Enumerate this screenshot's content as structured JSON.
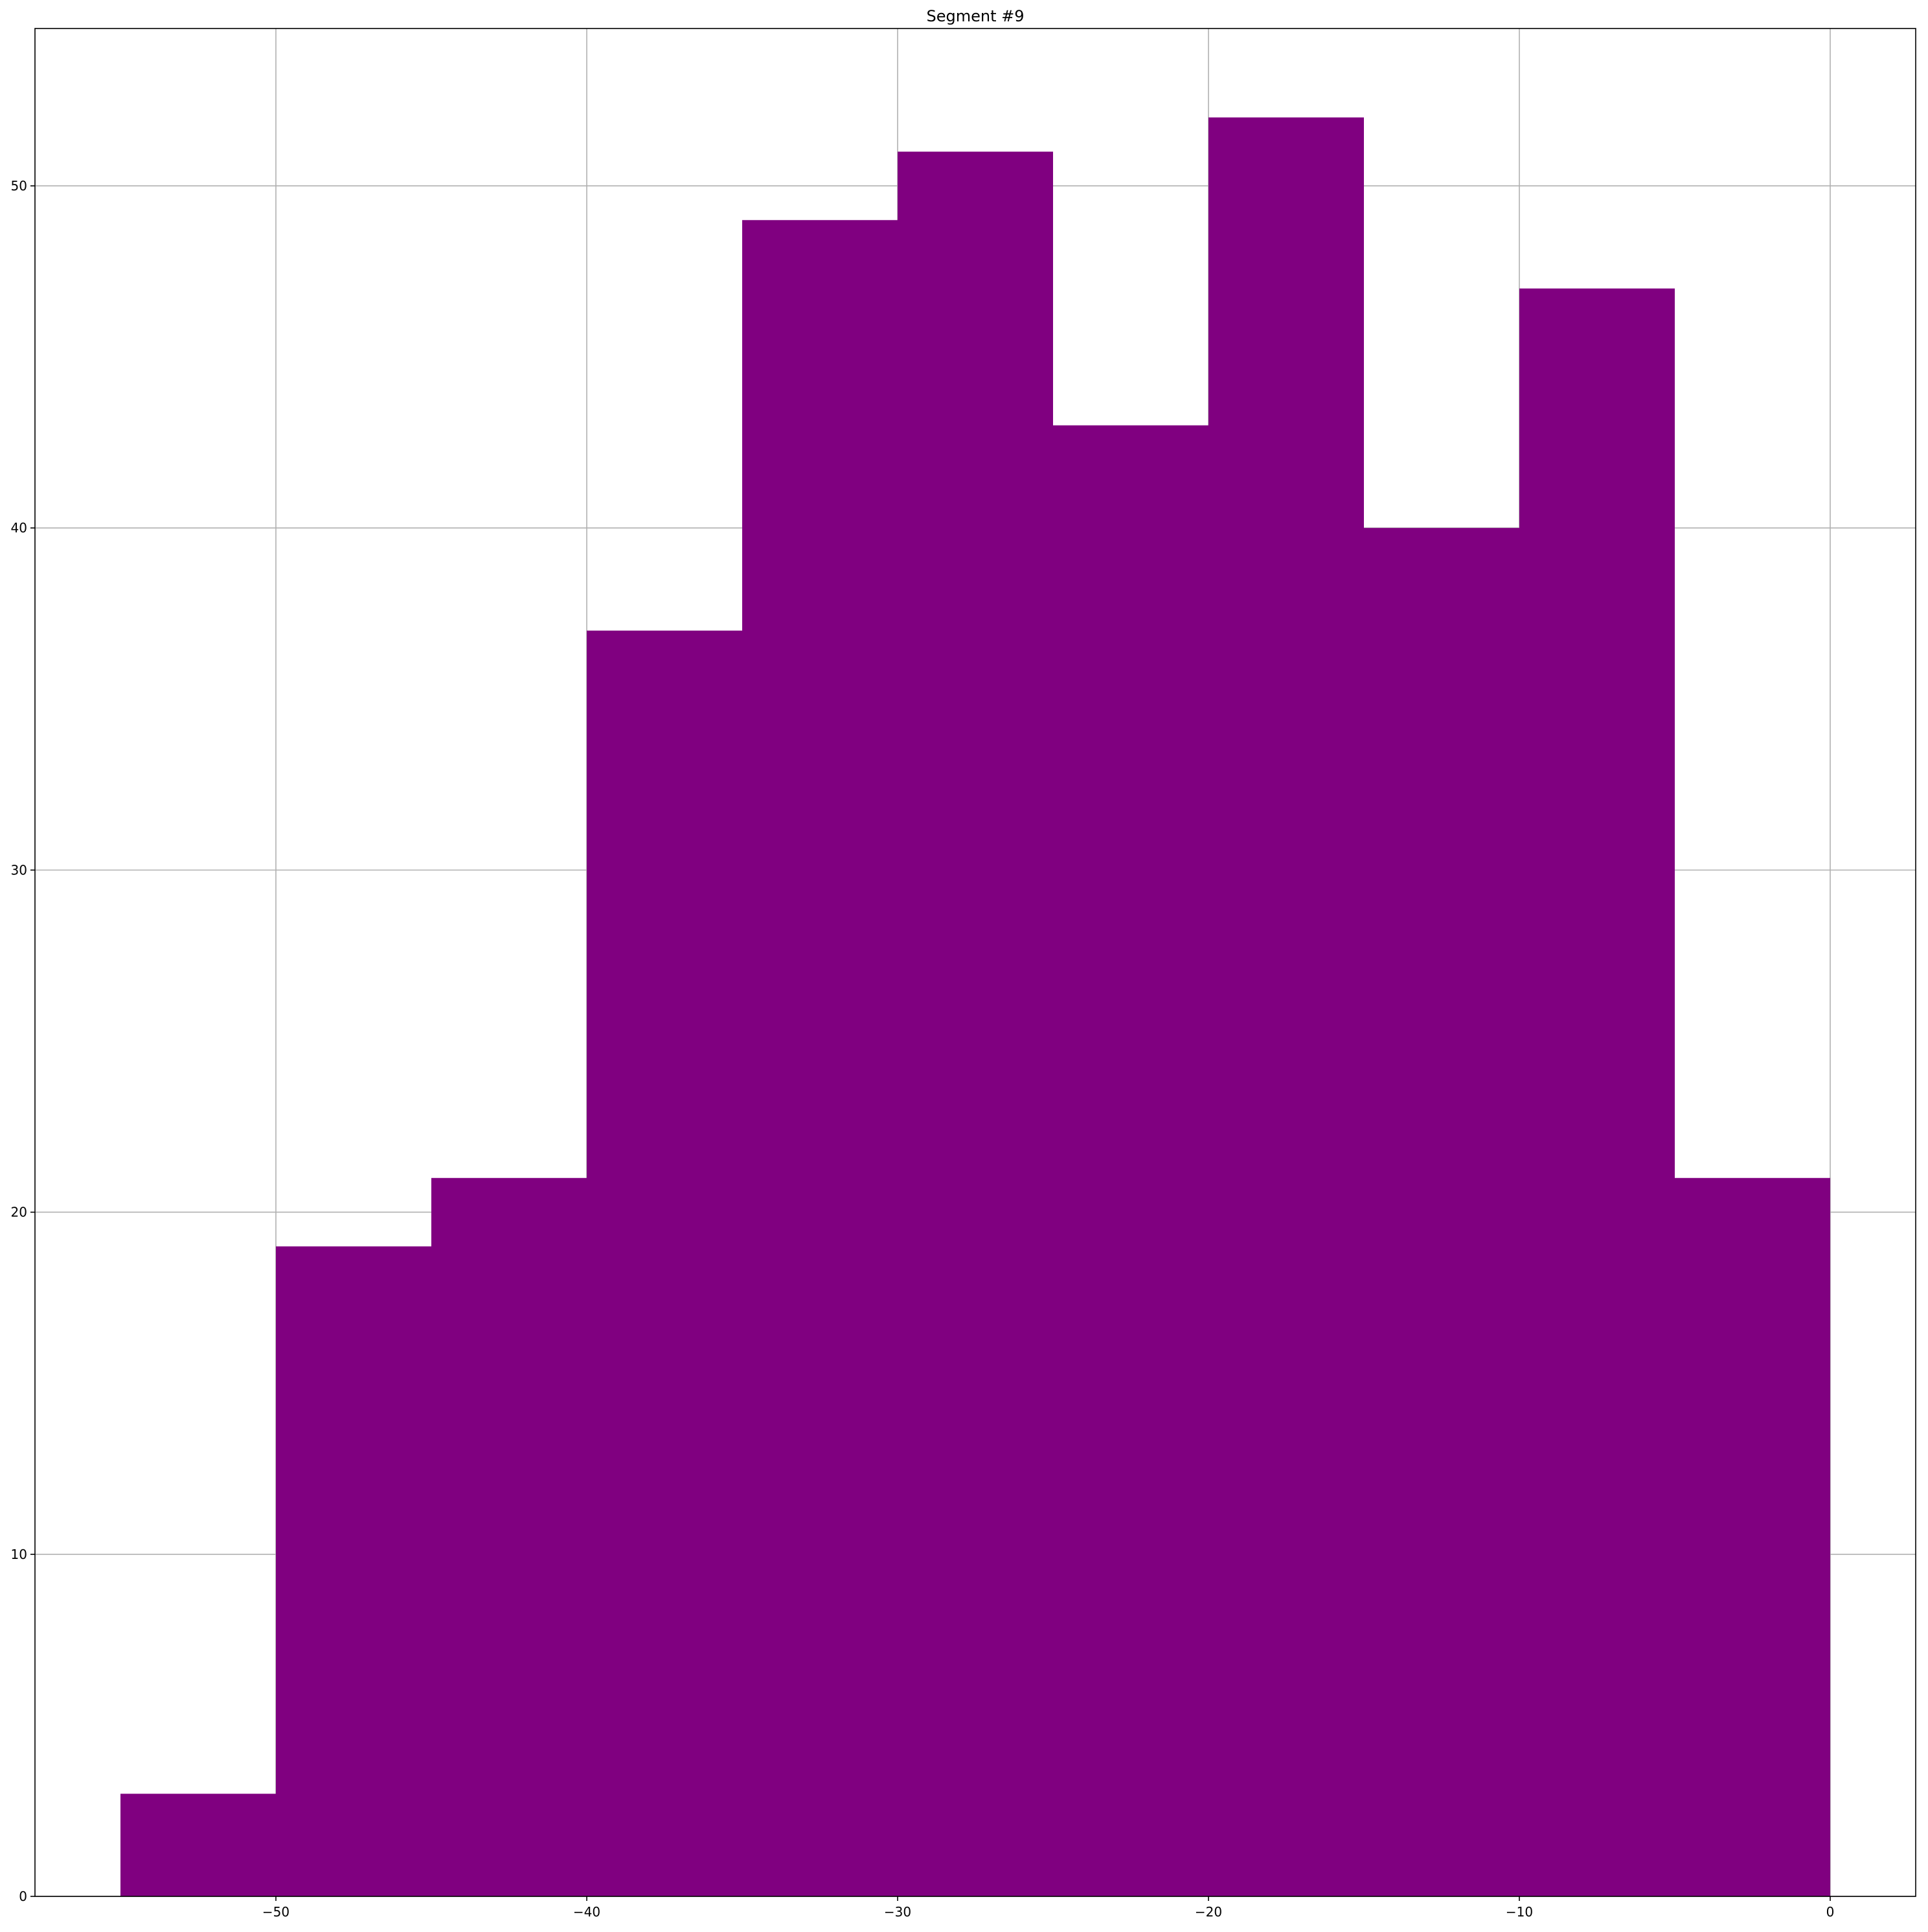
{
  "chart_data": {
    "type": "bar",
    "subtype": "histogram",
    "title": "Segment #9",
    "xlabel": "",
    "ylabel": "",
    "bin_edges": [
      -55,
      -50,
      -45,
      -40,
      -35,
      -30,
      -25,
      -20,
      -15,
      -10,
      -5,
      0
    ],
    "values": [
      3,
      19,
      21,
      37,
      49,
      51,
      43,
      52,
      40,
      47,
      21
    ],
    "xlim": [
      -57.75,
      2.75
    ],
    "ylim": [
      0,
      54.6
    ],
    "xticks": [
      -50,
      -40,
      -30,
      -20,
      -10,
      0
    ],
    "xtick_labels": [
      "−50",
      "−40",
      "−30",
      "−20",
      "−10",
      "0"
    ],
    "yticks": [
      0,
      10,
      20,
      30,
      40,
      50
    ],
    "ytick_labels": [
      "0",
      "10",
      "20",
      "30",
      "40",
      "50"
    ],
    "grid": true,
    "bar_color": "#800080",
    "grid_color": "#b0b0b0"
  }
}
